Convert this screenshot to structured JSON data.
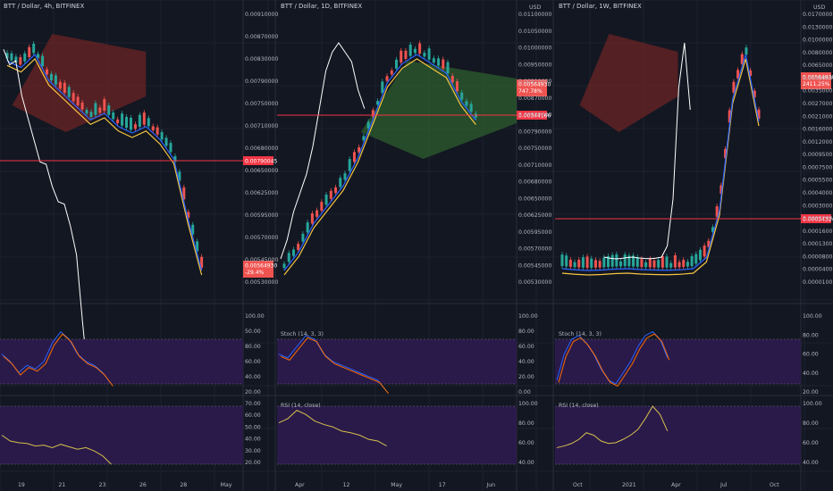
{
  "colors": {
    "background": "#131722",
    "grid": "#1e222d",
    "up_candle": "#26a69a",
    "down_candle": "#ef5350",
    "ref_line": "#f23645",
    "conversion_line": "#2962ff",
    "base_line": "#f5c542",
    "lagging_span": "#ffffff",
    "cloud_bull": "#2e5e2e",
    "cloud_bear": "#6b2424",
    "osc_band": "#2a1a4a",
    "stoch_k": "#2962ff",
    "stoch_d": "#ff6d00",
    "rsi_line": "#d4c04a"
  },
  "panels": [
    {
      "title": "BTT / Dollar, 4h, BITFINEX",
      "currency": "",
      "price_axis": [
        "0.00910000",
        "0.00870000",
        "0.00830000",
        "0.00790000",
        "0.00750000",
        "0.00710000",
        "0.00680000",
        "0.00650000",
        "0.00625000",
        "0.00595000",
        "0.00570000",
        "0.00545000",
        "0.00530000"
      ],
      "ref_line_label": "0.00790045",
      "last_price_label": "0.00564930",
      "last_change_label": "-29.4%",
      "stoch_title": "",
      "stoch_axis": [
        "100.00",
        "50.00",
        "80.00",
        "60.00",
        "40.00",
        "20.00"
      ],
      "rsi_title": "",
      "rsi_axis": [
        "70.00",
        "60.00",
        "50.00",
        "40.00",
        "30.00",
        "20.00"
      ],
      "time_axis": [
        "19",
        "21",
        "23",
        "26",
        "28",
        "May"
      ],
      "chart_data": {
        "type": "line",
        "series": [
          {
            "name": "",
            "values": [
              0.0089,
              0.0088,
              0.009,
              0.0086,
              0.0084,
              0.0082,
              0.008,
              0.0081,
              0.0079,
              0.0078,
              0.0079,
              0.0077,
              0.0074,
              0.0065,
              0.0057
            ]
          },
          {
            "name": "Stoch (14, 3, 3)",
            "values": [
              60,
              50,
              35,
              45,
              40,
              50,
              75,
              90,
              80,
              60,
              50,
              45,
              35,
              20
            ]
          },
          {
            "name": "RSI (14, close)",
            "values": [
              55,
              48,
              46,
              45,
              42,
              43,
              40,
              44,
              41,
              38,
              40,
              36,
              30,
              20
            ]
          }
        ]
      }
    },
    {
      "title": "BTT / Dollar, 1D, BITFINEX",
      "currency": "USD",
      "price_axis": [
        "0.01100000",
        "0.01050000",
        "0.01000000",
        "0.00950000",
        "0.00910000",
        "0.00870000",
        "0.00830000",
        "0.00790000",
        "0.00750000",
        "0.00710000",
        "0.00680000",
        "0.00650000",
        "0.00625000",
        "0.00595000",
        "0.00570000",
        "0.00545000",
        "0.00530000"
      ],
      "ref_line_label": "0.00344166",
      "last_price_label": "0.00564930",
      "last_change_label": "747.78%",
      "stoch_title": "Stoch (14, 3, 3)",
      "stoch_axis": [
        "100.00",
        "80.00",
        "60.00",
        "40.00",
        "20.00",
        "0.00"
      ],
      "rsi_title": "RSI (14, close)",
      "rsi_axis": [
        "100.00",
        "80.00",
        "60.00",
        "40.00"
      ],
      "time_axis": [
        "Apr",
        "12",
        "May",
        "17",
        "Jun"
      ],
      "chart_data": {
        "type": "line",
        "series": [
          {
            "name": "",
            "values": [
              0.0074,
              0.0076,
              0.0079,
              0.0081,
              0.0083,
              0.0086,
              0.009,
              0.0094,
              0.0096,
              0.0097,
              0.0096,
              0.0095,
              0.0092,
              0.009
            ]
          },
          {
            "name": "Stoch (14, 3, 3)",
            "values": [
              60,
              55,
              70,
              85,
              80,
              60,
              50,
              45,
              40,
              35,
              30,
              25,
              10
            ]
          },
          {
            "name": "RSI (14, close)",
            "values": [
              70,
              75,
              85,
              80,
              72,
              68,
              65,
              60,
              58,
              55,
              50,
              48,
              42
            ]
          }
        ]
      }
    },
    {
      "title": "BTT / Dollar, 1W, BITFINEX",
      "currency": "USD",
      "price_axis": [
        "0.01700000",
        "0.01300000",
        "0.01000000",
        "0.00800000",
        "0.00650000",
        "0.00450000",
        "0.00350000",
        "0.00270000",
        "0.00210000",
        "0.00160000",
        "0.00120000",
        "0.00095000",
        "0.00075000",
        "0.00055000",
        "0.00040000",
        "0.00030000",
        "0.00022000",
        "0.00016000",
        "0.00013000",
        "0.00008000",
        "0.00004000",
        "0.00001000"
      ],
      "ref_line_label": "0.00034324",
      "last_price_label": "0.00564930",
      "last_change_label": "2411.25%",
      "stoch_title": "Stoch (14, 3, 3)",
      "stoch_axis": [
        "100.00",
        "80.00",
        "60.00",
        "40.00",
        "20.00"
      ],
      "rsi_title": "RSI (14, close)",
      "rsi_axis": [
        "100.00",
        "80.00",
        "60.00",
        "40.00"
      ],
      "time_axis": [
        "Oct",
        "2021",
        "Apr",
        "Jul",
        "Oct"
      ],
      "chart_data": {
        "type": "line",
        "series": [
          {
            "name": "",
            "values": [
              0.0004,
              0.00035,
              0.00032,
              0.00034,
              0.00038,
              0.0004,
              0.00036,
              0.00034,
              0.00033,
              0.00035,
              0.0004,
              0.0009,
              0.003,
              0.008,
              0.01,
              0.007
            ]
          },
          {
            "name": "Stoch (14, 3, 3)",
            "values": [
              25,
              60,
              80,
              85,
              75,
              60,
              40,
              25,
              20,
              35,
              50,
              70,
              85,
              90,
              80,
              55
            ]
          },
          {
            "name": "RSI (14, close)",
            "values": [
              40,
              42,
              45,
              50,
              58,
              55,
              48,
              45,
              46,
              50,
              55,
              62,
              75,
              90,
              80,
              60
            ]
          }
        ]
      }
    }
  ]
}
